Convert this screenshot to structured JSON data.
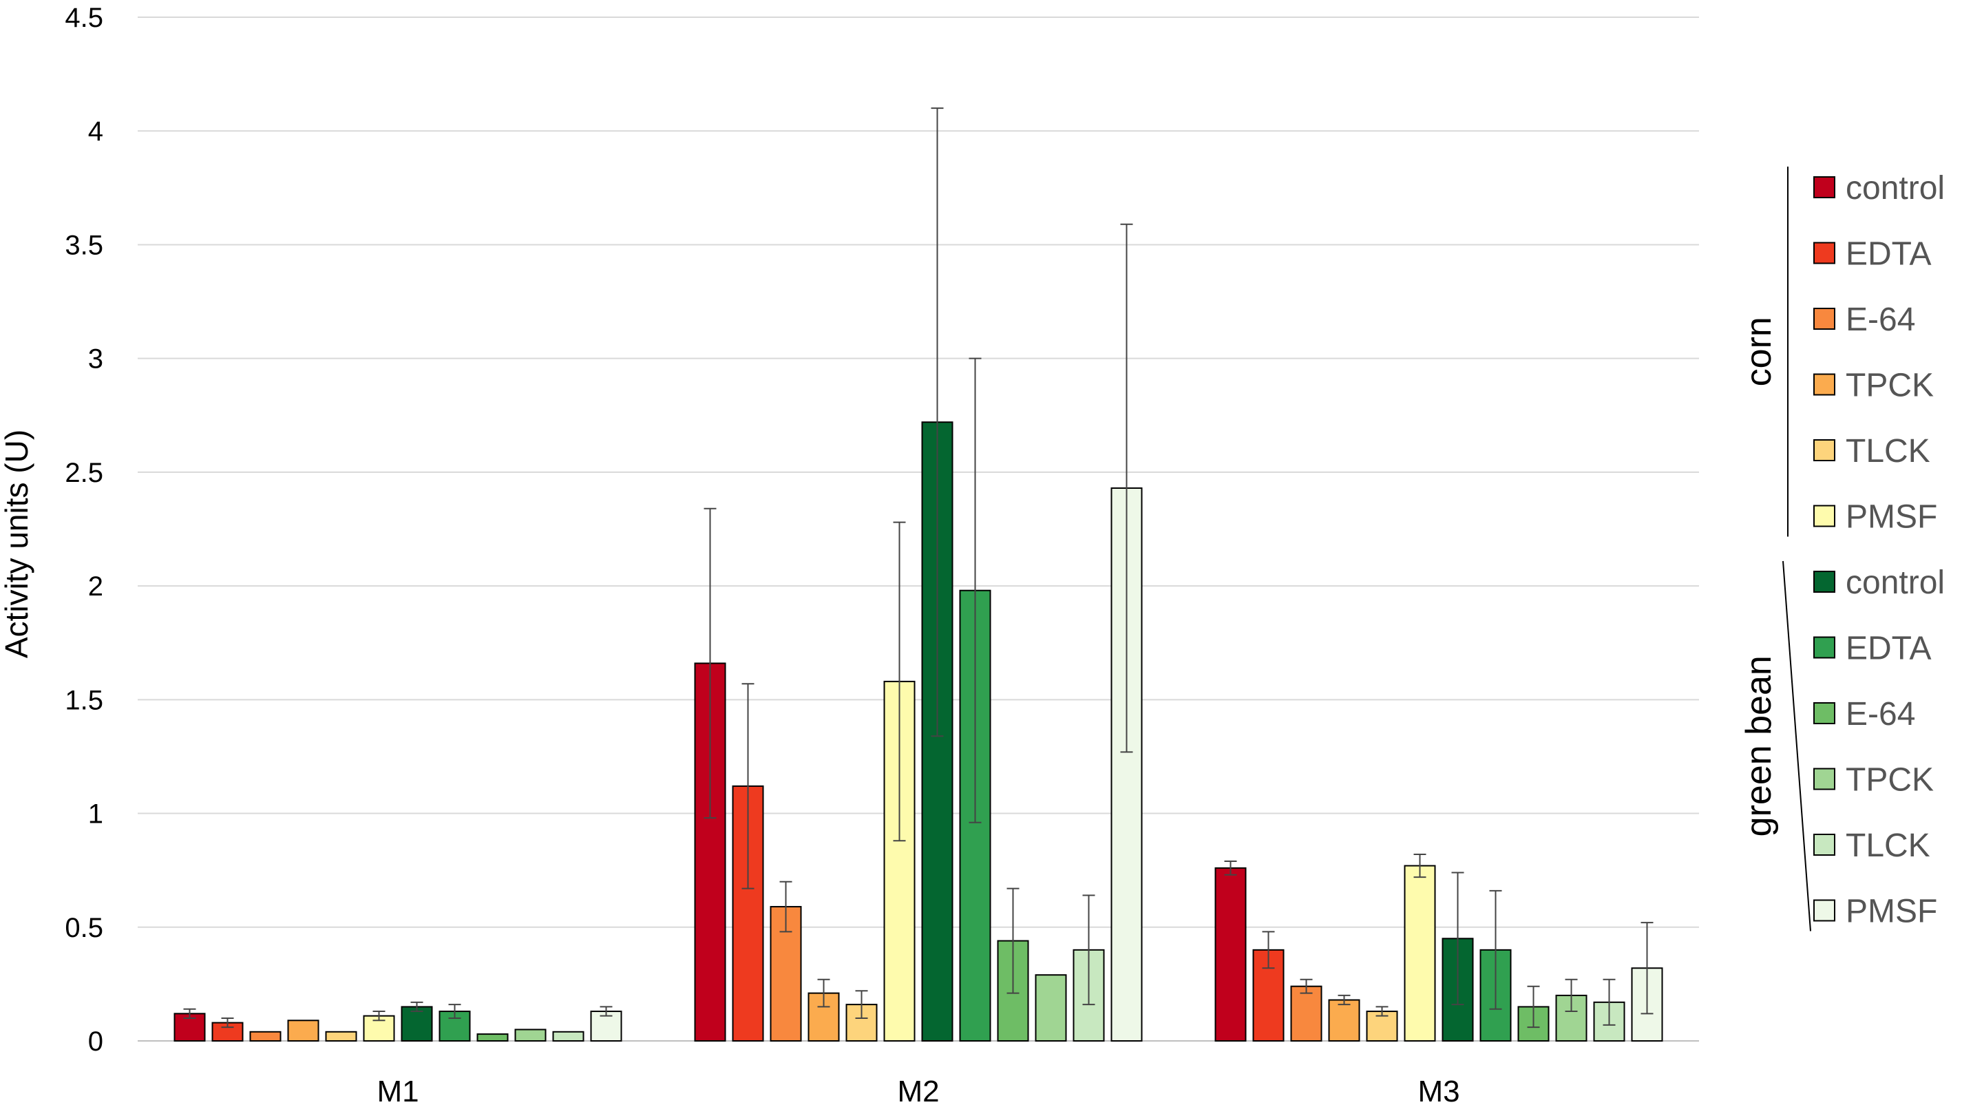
{
  "chart_data": {
    "type": "bar",
    "title": "",
    "xlabel": "",
    "ylabel": "Activity units (U)",
    "ylim": [
      0,
      4.5
    ],
    "yticks": [
      "0",
      "0.5",
      "1",
      "1.5",
      "2",
      "2.5",
      "3",
      "3.5",
      "4",
      "4.5"
    ],
    "grid": true,
    "legend_position": "right",
    "categories": [
      "M1",
      "M2",
      "M3"
    ],
    "legend_groups": [
      {
        "label": "corn",
        "series_start": 0,
        "series_end": 5
      },
      {
        "label": "green bean",
        "series_start": 6,
        "series_end": 11
      }
    ],
    "series": [
      {
        "name": "control",
        "group": "corn",
        "color": "#c0001c",
        "values": [
          0.12,
          1.66,
          0.76
        ],
        "errors": [
          0.02,
          0.68,
          0.03
        ]
      },
      {
        "name": "EDTA",
        "group": "corn",
        "color": "#ee3a1f",
        "values": [
          0.08,
          1.12,
          0.4
        ],
        "errors": [
          0.02,
          0.45,
          0.08
        ]
      },
      {
        "name": "E-64",
        "group": "corn",
        "color": "#f8883e",
        "values": [
          0.04,
          0.59,
          0.24
        ],
        "errors": [
          0.0,
          0.11,
          0.03
        ]
      },
      {
        "name": "TPCK",
        "group": "corn",
        "color": "#fbab4e",
        "values": [
          0.09,
          0.21,
          0.18
        ],
        "errors": [
          0.0,
          0.06,
          0.02
        ]
      },
      {
        "name": "TLCK",
        "group": "corn",
        "color": "#fdd47c",
        "values": [
          0.04,
          0.16,
          0.13
        ],
        "errors": [
          0.0,
          0.06,
          0.02
        ]
      },
      {
        "name": "PMSF",
        "group": "corn",
        "color": "#fefbad",
        "values": [
          0.11,
          1.58,
          0.77
        ],
        "errors": [
          0.02,
          0.7,
          0.05
        ]
      },
      {
        "name": "control",
        "group": "green bean",
        "color": "#046630",
        "values": [
          0.15,
          2.72,
          0.45
        ],
        "errors": [
          0.02,
          1.38,
          0.29
        ]
      },
      {
        "name": "EDTA",
        "group": "green bean",
        "color": "#30a050",
        "values": [
          0.13,
          1.98,
          0.4
        ],
        "errors": [
          0.03,
          1.02,
          0.26
        ]
      },
      {
        "name": "E-64",
        "group": "green bean",
        "color": "#6ebd65",
        "values": [
          0.03,
          0.44,
          0.15
        ],
        "errors": [
          0.0,
          0.23,
          0.09
        ]
      },
      {
        "name": "TPCK",
        "group": "green bean",
        "color": "#a0d593",
        "values": [
          0.05,
          0.29,
          0.2
        ],
        "errors": [
          0.0,
          0.0,
          0.07
        ]
      },
      {
        "name": "TLCK",
        "group": "green bean",
        "color": "#c8e8c0",
        "values": [
          0.04,
          0.4,
          0.17
        ],
        "errors": [
          0.0,
          0.24,
          0.1
        ]
      },
      {
        "name": "PMSF",
        "group": "green bean",
        "color": "#eef8e8",
        "values": [
          0.13,
          2.43,
          0.32
        ],
        "errors": [
          0.02,
          1.16,
          0.2
        ]
      }
    ]
  }
}
